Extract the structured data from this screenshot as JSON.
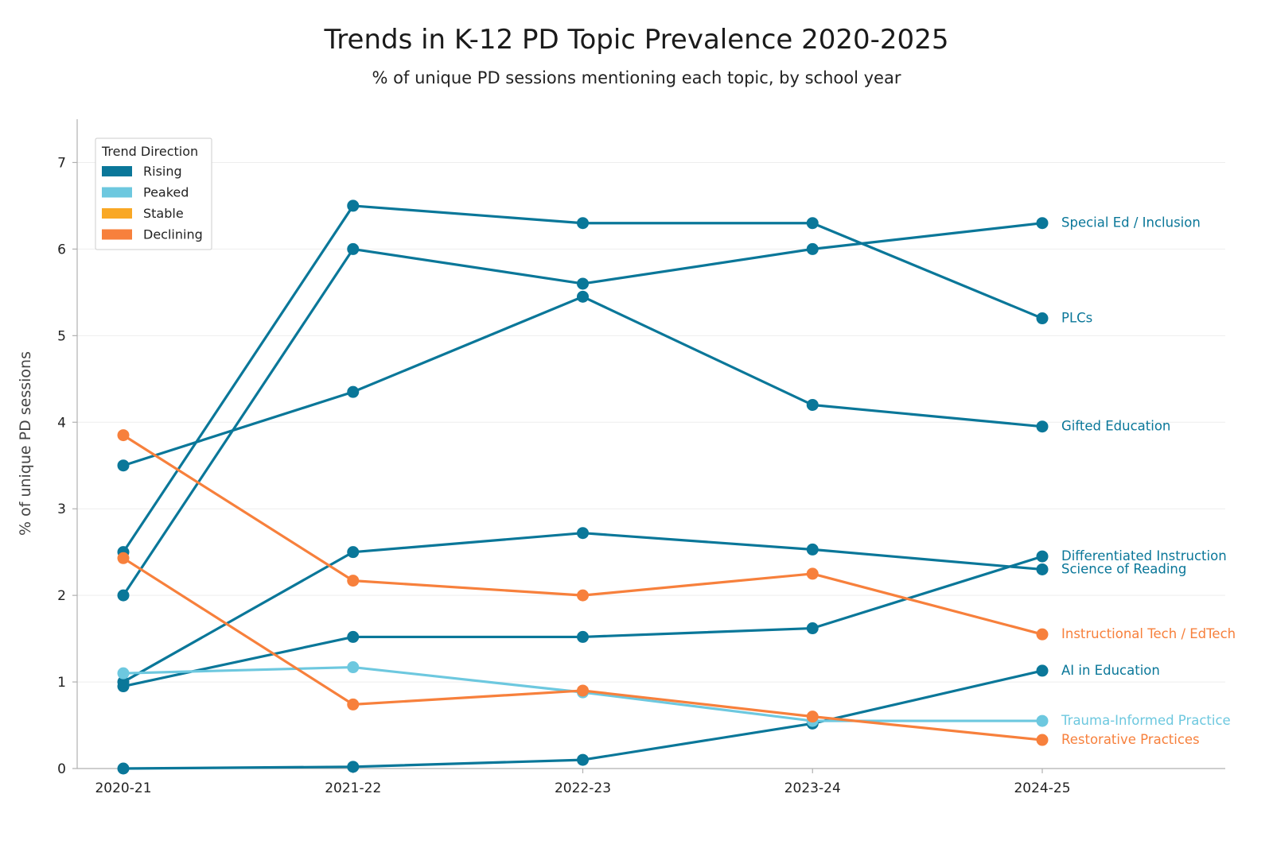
{
  "chart_data": {
    "type": "line",
    "title": "Trends in K-12 PD Topic Prevalence 2020-2025",
    "subtitle": "% of unique PD sessions mentioning each topic, by school year",
    "xlabel": "",
    "ylabel": "% of unique PD sessions",
    "categories": [
      "2020-21",
      "2021-22",
      "2022-23",
      "2023-24",
      "2024-25"
    ],
    "ylim": [
      0,
      7.5
    ],
    "yticks": [
      0,
      1,
      2,
      3,
      4,
      5,
      6,
      7
    ],
    "grid": "horizontal",
    "legend": {
      "title": "Trend Direction",
      "position": "top-left",
      "entries": [
        {
          "label": "Rising",
          "color": "#0a7799"
        },
        {
          "label": "Peaked",
          "color": "#6dc8df"
        },
        {
          "label": "Stable",
          "color": "#f9a825"
        },
        {
          "label": "Declining",
          "color": "#f7803c"
        }
      ]
    },
    "series": [
      {
        "name": "Special Ed / Inclusion",
        "trend": "Rising",
        "color": "#0a7799",
        "values": [
          2.0,
          6.0,
          5.6,
          6.0,
          6.3
        ]
      },
      {
        "name": "PLCs",
        "trend": "Rising",
        "color": "#0a7799",
        "values": [
          2.5,
          6.5,
          6.3,
          6.3,
          5.2
        ]
      },
      {
        "name": "Gifted Education",
        "trend": "Rising",
        "color": "#0a7799",
        "values": [
          3.5,
          4.35,
          5.45,
          4.2,
          3.95
        ]
      },
      {
        "name": "Differentiated Instruction",
        "trend": "Rising",
        "color": "#0a7799",
        "values": [
          0.95,
          1.52,
          1.52,
          1.62,
          2.45
        ]
      },
      {
        "name": "Science of Reading",
        "trend": "Rising",
        "color": "#0a7799",
        "values": [
          1.0,
          2.5,
          2.72,
          2.53,
          2.3
        ]
      },
      {
        "name": "Instructional Tech / EdTech",
        "trend": "Declining",
        "color": "#f7803c",
        "values": [
          3.85,
          2.17,
          2.0,
          2.25,
          1.55
        ]
      },
      {
        "name": "AI in Education",
        "trend": "Rising",
        "color": "#0a7799",
        "values": [
          0.0,
          0.02,
          0.1,
          0.52,
          1.13
        ]
      },
      {
        "name": "Trauma-Informed Practice",
        "trend": "Peaked",
        "color": "#6dc8df",
        "values": [
          1.1,
          1.17,
          0.88,
          0.55,
          0.55
        ]
      },
      {
        "name": "Restorative Practices",
        "trend": "Declining",
        "color": "#f7803c",
        "values": [
          2.43,
          0.74,
          0.9,
          0.6,
          0.33
        ]
      }
    ]
  }
}
